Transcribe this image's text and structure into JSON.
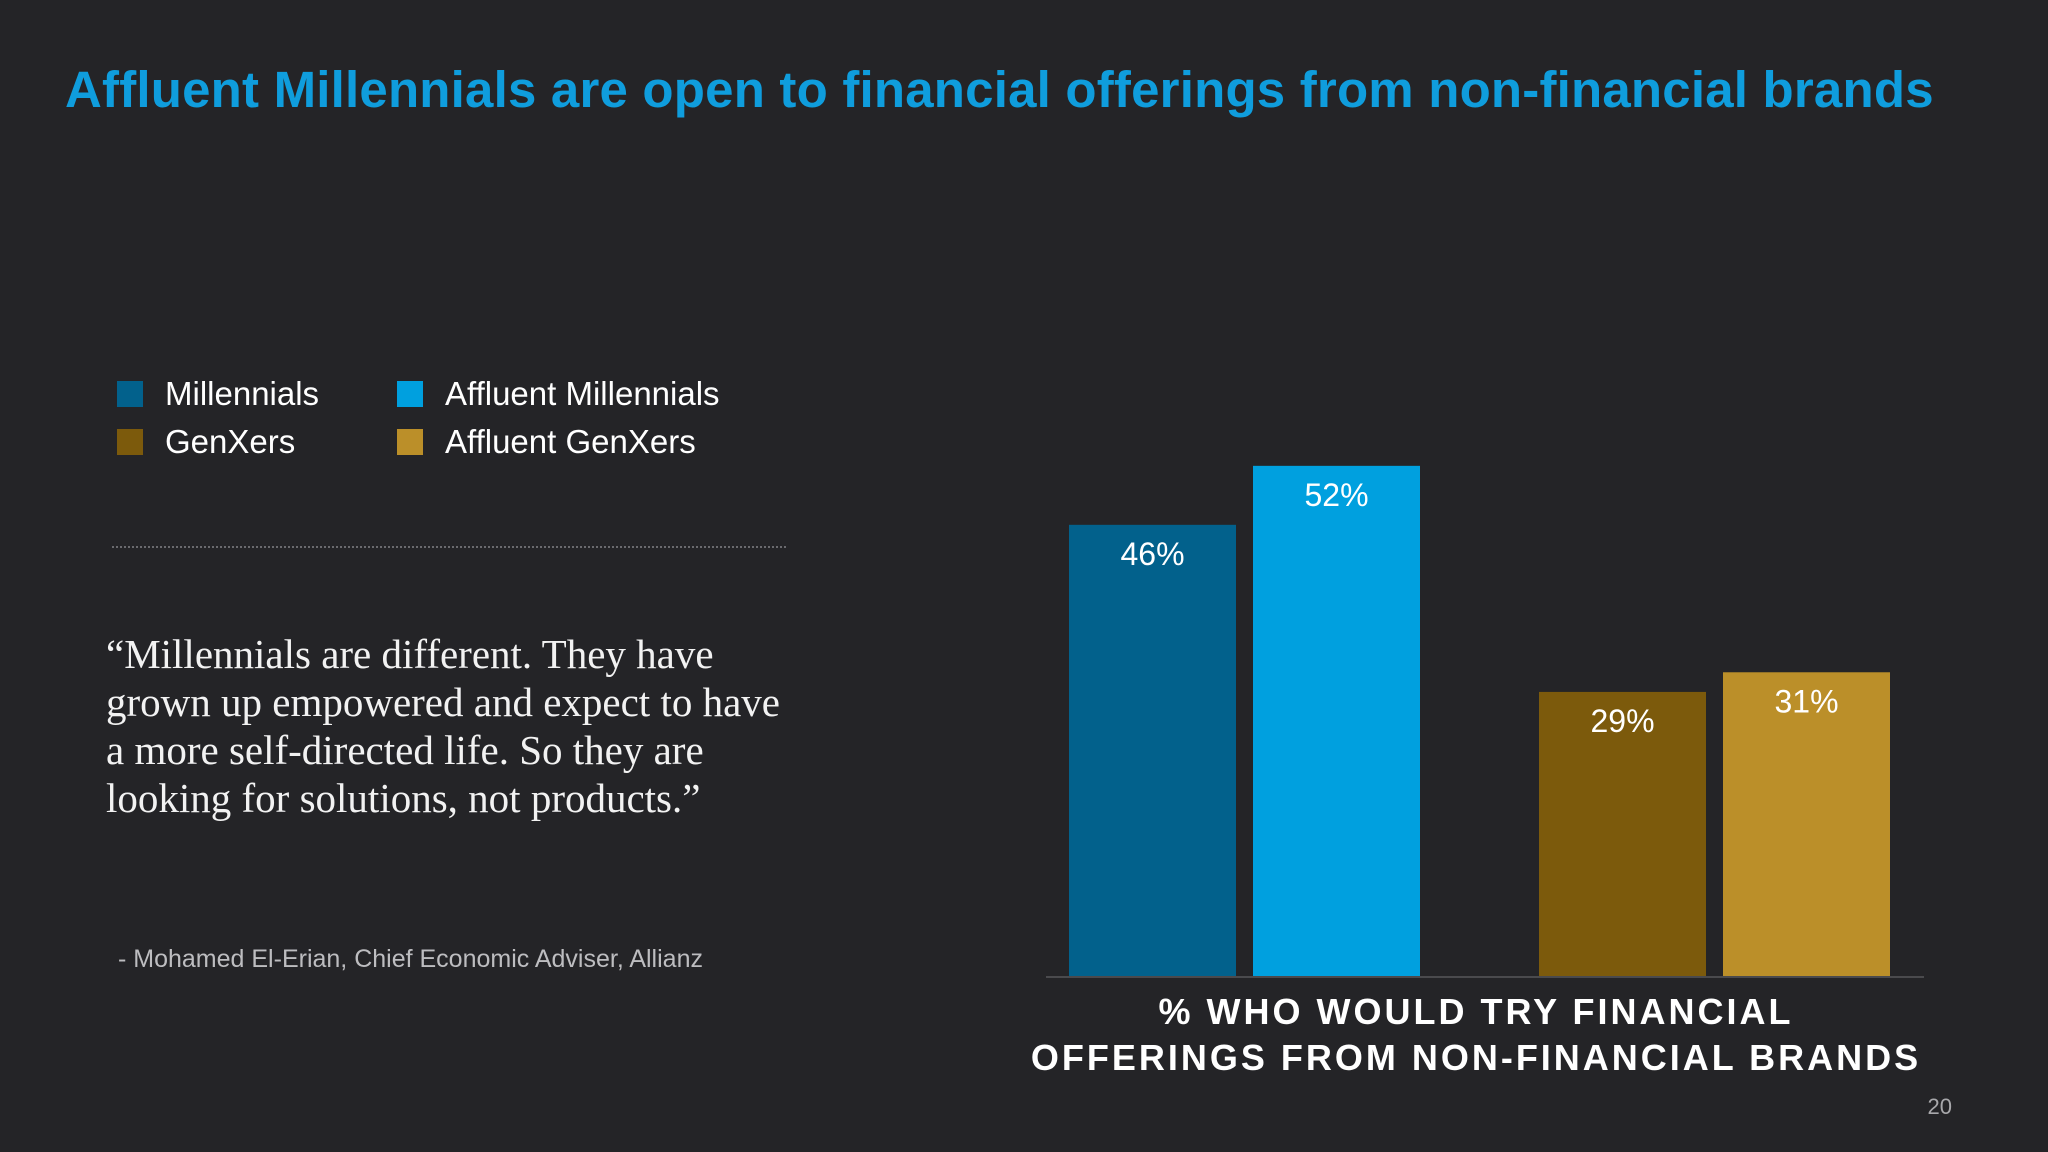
{
  "slide": {
    "title": "Affluent Millennials are open to financial offerings from non-financial brands",
    "quote": "“Millennials are different. They have grown up empowered and expect to have a more self-directed life. So they are looking for solutions, not products.”",
    "attribution": "- Mohamed El-Erian, Chief Economic Adviser, Allianz",
    "page_number": "20"
  },
  "legend": [
    {
      "label": "Millennials",
      "color": "#02618c"
    },
    {
      "label": "Affluent Millennials",
      "color": "#00a0df"
    },
    {
      "label": "GenXers",
      "color": "#7c5a0c"
    },
    {
      "label": "Affluent GenXers",
      "color": "#bb8f29"
    }
  ],
  "chart_data": {
    "type": "bar",
    "title": "",
    "xlabel": "% WHO WOULD TRY FINANCIAL OFFERINGS FROM NON-FINANCIAL BRANDS",
    "ylabel": "",
    "ylim": [
      0,
      60
    ],
    "grid": false,
    "legend_position": "top-left",
    "unit": "%",
    "series": [
      {
        "name": "Millennials",
        "values": [
          46
        ],
        "color": "#02618c"
      },
      {
        "name": "Affluent Millennials",
        "values": [
          52
        ],
        "color": "#00a0df"
      },
      {
        "name": "GenXers",
        "values": [
          29
        ],
        "color": "#7c5a0c"
      },
      {
        "name": "Affluent GenXers",
        "values": [
          31
        ],
        "color": "#bb8f29"
      }
    ],
    "data_labels": [
      "46%",
      "52%",
      "29%",
      "31%"
    ]
  }
}
